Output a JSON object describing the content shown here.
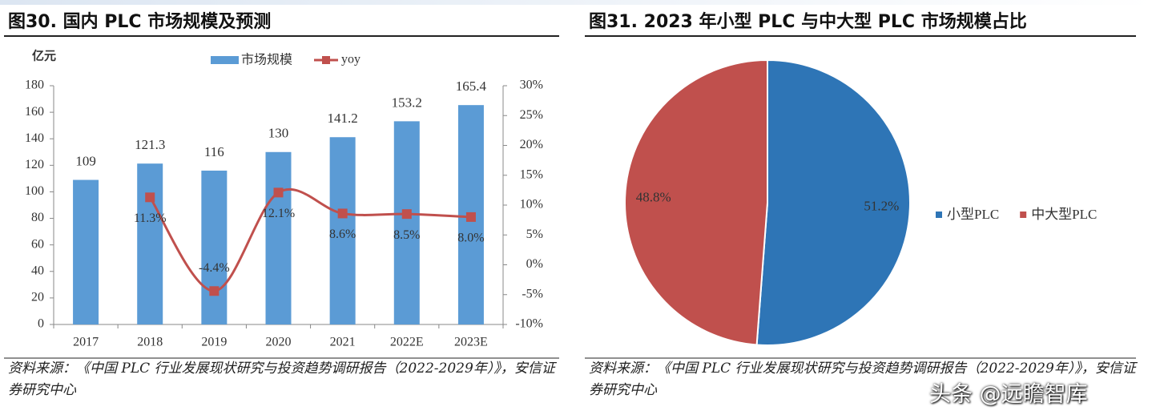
{
  "chart_data": [
    {
      "type": "combo",
      "title": "图30. 国内 PLC 市场规模及预测",
      "y_label": "亿元",
      "categories": [
        "2017",
        "2018",
        "2019",
        "2020",
        "2021",
        "2022E",
        "2023E"
      ],
      "series": [
        {
          "name": "市场规模",
          "color": "#5b9bd5",
          "values": [
            109,
            121.3,
            116,
            130,
            141.2,
            153.2,
            165.4
          ]
        },
        {
          "name": "yoy",
          "color": "#c0504d",
          "axis": "y2",
          "values": [
            null,
            11.3,
            -4.4,
            12.1,
            8.6,
            8.5,
            8.0
          ],
          "value_labels": [
            null,
            "11.3%",
            "-4.4%",
            "12.1%",
            "8.6%",
            "8.5%",
            "8.0%"
          ]
        }
      ],
      "ylim": [
        0,
        180
      ],
      "yticks": [
        0,
        20,
        40,
        60,
        80,
        100,
        120,
        140,
        160,
        180
      ],
      "y2lim": [
        -10,
        30
      ],
      "y2ticks": [
        {
          "value": -10,
          "label": "-10%"
        },
        {
          "value": -5,
          "label": "-5%"
        },
        {
          "value": 0,
          "label": "0%"
        },
        {
          "value": 5,
          "label": "5%"
        },
        {
          "value": 10,
          "label": "10%"
        },
        {
          "value": 15,
          "label": "15%"
        },
        {
          "value": 20,
          "label": "20%"
        },
        {
          "value": 25,
          "label": "25%"
        },
        {
          "value": 30,
          "label": "30%"
        }
      ],
      "grid": false,
      "legend": "top",
      "source": "资料来源：《中国 PLC 行业发展现状研究与投资趋势调研报告（2022-2029年）》，安信证券研究中心"
    },
    {
      "type": "pie",
      "title": "图31. 2023 年小型 PLC 与中大型 PLC 市场规模占比",
      "categories": [
        "小型PLC",
        "中大型PLC"
      ],
      "values": [
        51.2,
        48.8
      ],
      "value_labels": [
        "51.2%",
        "48.8%"
      ],
      "colors": [
        "#2e75b6",
        "#c0504d"
      ],
      "legend": "right",
      "source": "资料来源：《中国 PLC 行业发展现状研究与投资趋势调研报告（2022-2029年）》，安信证券研究中心"
    }
  ],
  "watermark": "头条 @远瞻智库"
}
